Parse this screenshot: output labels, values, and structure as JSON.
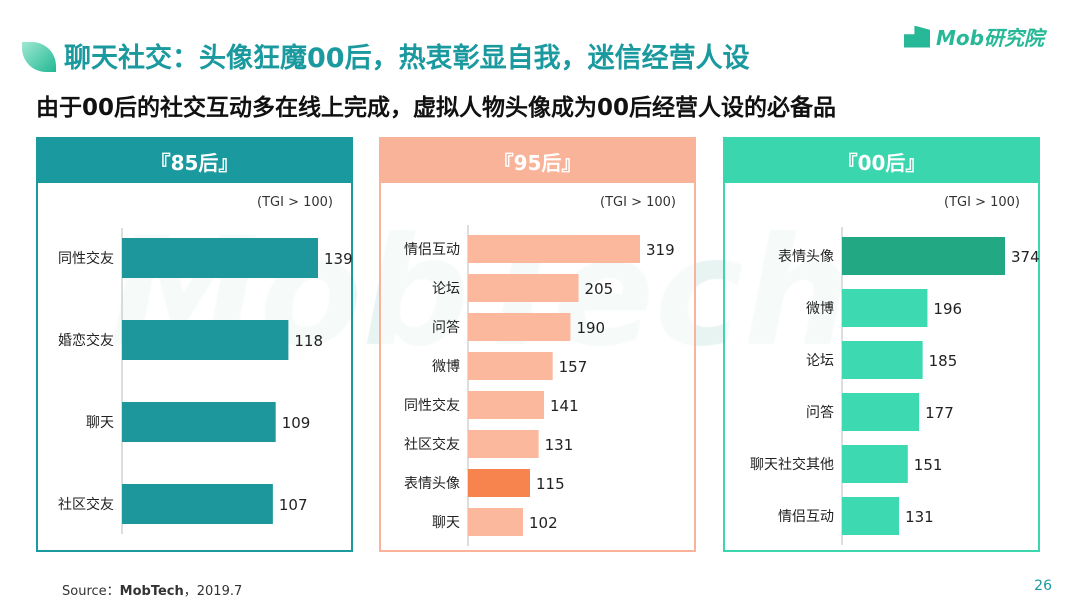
{
  "header": {
    "title": "聊天社交：头像狂魔00后，热衷彰显自我，迷信经营人设",
    "subtitle": "由于00后的社交互动多在线上完成，虚拟人物头像成为00后经营人设的必备品",
    "logo": "Mob研究院",
    "watermark": "MobTech"
  },
  "footer": {
    "source_label": "Source：",
    "source_name": "MobTech",
    "source_date": "，2019.7",
    "page_number": "26"
  },
  "chart_data": [
    {
      "type": "bar",
      "orientation": "horizontal",
      "title": "『85后』",
      "unit_note": "(TGI > 100)",
      "categories": [
        "同性交友",
        "婚恋交友",
        "聊天",
        "社区交友"
      ],
      "values": [
        139,
        118,
        109,
        107
      ],
      "color": "#1e979c",
      "header_color": "#1a9a9f",
      "highlight": null
    },
    {
      "type": "bar",
      "orientation": "horizontal",
      "title": "『95后』",
      "unit_note": "(TGI > 100)",
      "categories": [
        "情侣互动",
        "论坛",
        "问答",
        "微博",
        "同性交友",
        "社区交友",
        "表情头像",
        "聊天"
      ],
      "values": [
        319,
        205,
        190,
        157,
        141,
        131,
        115,
        102
      ],
      "color": "#fbb89c",
      "header_color": "#f9b398",
      "highlight": {
        "category": "表情头像",
        "color": "#f7834f"
      }
    },
    {
      "type": "bar",
      "orientation": "horizontal",
      "title": "『00后』",
      "unit_note": "(TGI > 100)",
      "categories": [
        "表情头像",
        "微博",
        "论坛",
        "问答",
        "聊天社交其他",
        "情侣互动"
      ],
      "values": [
        374,
        196,
        185,
        177,
        151,
        131
      ],
      "color": "#3dd9b0",
      "header_color": "#3ad6ae",
      "highlight": {
        "category": "表情头像",
        "color": "#23a884"
      }
    }
  ]
}
